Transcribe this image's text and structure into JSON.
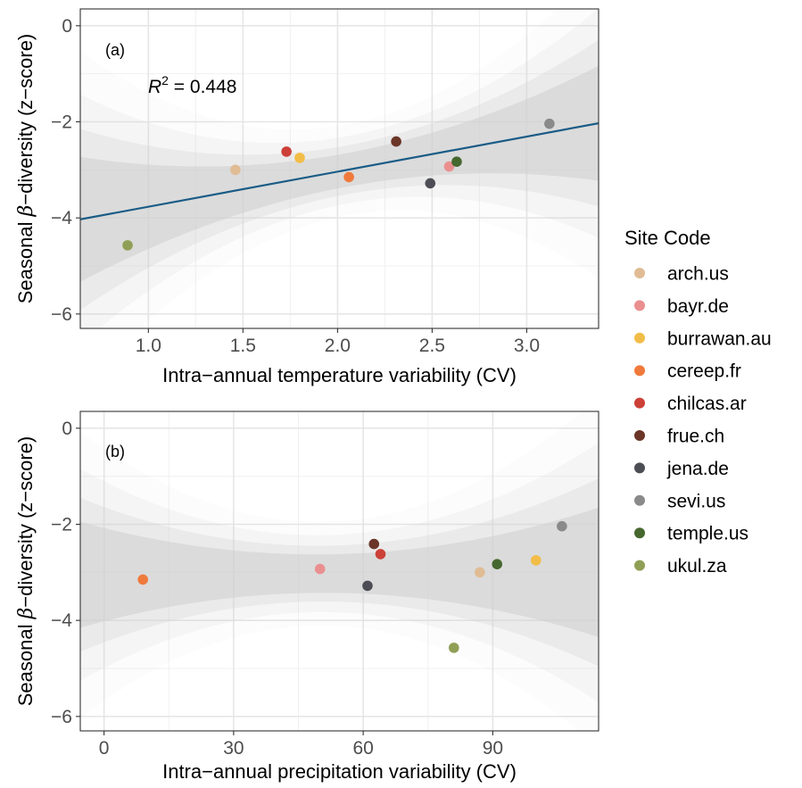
{
  "legend": {
    "title": "Site Code",
    "items": [
      {
        "label": "arch.us",
        "color": "#e0bc94"
      },
      {
        "label": "bayr.de",
        "color": "#ea8f8f"
      },
      {
        "label": "burrawan.au",
        "color": "#f2bd47"
      },
      {
        "label": "cereep.fr",
        "color": "#f07a3b"
      },
      {
        "label": "chilcas.ar",
        "color": "#cc4038"
      },
      {
        "label": "frue.ch",
        "color": "#6b3528"
      },
      {
        "label": "jena.de",
        "color": "#4d4d55"
      },
      {
        "label": "sevi.us",
        "color": "#8a8a8a"
      },
      {
        "label": "temple.us",
        "color": "#46682f"
      },
      {
        "label": "ukul.za",
        "color": "#8f9f55"
      }
    ]
  },
  "chart_data": [
    {
      "type": "scatter",
      "panel_tag": "(a)",
      "xlabel": "Intra−annual temperature variability (CV)",
      "ylabel_pre": "Seasonal ",
      "ylabel_beta": "β",
      "ylabel_post": "−diversity (z−score)",
      "xlim": [
        0.64,
        3.38
      ],
      "ylim": [
        -6.3,
        0.35
      ],
      "xticks": [
        1.0,
        1.5,
        2.0,
        2.5,
        3.0
      ],
      "xtick_labels": [
        "1.0",
        "1.5",
        "2.0",
        "2.5",
        "3.0"
      ],
      "yticks": [
        0,
        -2,
        -4,
        -6
      ],
      "ytick_labels": [
        "0",
        "−2",
        "−4",
        "−6"
      ],
      "annotation": {
        "prefix": "R",
        "sup": "2",
        "text": " = 0.448"
      },
      "fit_line": {
        "color": "#1a5c86",
        "x": [
          0.64,
          3.38
        ],
        "y": [
          -4.03,
          -2.03
        ]
      },
      "band_color": "#cfcfcf",
      "points": [
        {
          "site": "arch.us",
          "x": 1.46,
          "y": -3.0
        },
        {
          "site": "bayr.de",
          "x": 2.59,
          "y": -2.93
        },
        {
          "site": "burrawan.au",
          "x": 1.8,
          "y": -2.75
        },
        {
          "site": "cereep.fr",
          "x": 2.06,
          "y": -3.15
        },
        {
          "site": "chilcas.ar",
          "x": 1.73,
          "y": -2.62
        },
        {
          "site": "frue.ch",
          "x": 2.31,
          "y": -2.41
        },
        {
          "site": "jena.de",
          "x": 2.49,
          "y": -3.28
        },
        {
          "site": "sevi.us",
          "x": 3.12,
          "y": -2.04
        },
        {
          "site": "temple.us",
          "x": 2.63,
          "y": -2.83
        },
        {
          "site": "ukul.za",
          "x": 0.89,
          "y": -4.57
        }
      ]
    },
    {
      "type": "scatter",
      "panel_tag": "(b)",
      "xlabel": "Intra−annual precipitation variability (CV)",
      "ylabel_pre": "Seasonal ",
      "ylabel_beta": "β",
      "ylabel_post": "−diversity (z−score)",
      "xlim": [
        -5.5,
        114.5
      ],
      "ylim": [
        -6.3,
        0.35
      ],
      "xticks": [
        0,
        30,
        60,
        90
      ],
      "xtick_labels": [
        "0",
        "30",
        "60",
        "90"
      ],
      "yticks": [
        0,
        -2,
        -4,
        -6
      ],
      "ytick_labels": [
        "0",
        "−2",
        "−4",
        "−6"
      ],
      "band_color": "#cfcfcf",
      "points": [
        {
          "site": "arch.us",
          "x": 87,
          "y": -3.0
        },
        {
          "site": "bayr.de",
          "x": 50,
          "y": -2.93
        },
        {
          "site": "burrawan.au",
          "x": 100,
          "y": -2.75
        },
        {
          "site": "cereep.fr",
          "x": 9,
          "y": -3.15
        },
        {
          "site": "chilcas.ar",
          "x": 64,
          "y": -2.62
        },
        {
          "site": "frue.ch",
          "x": 62.5,
          "y": -2.41
        },
        {
          "site": "jena.de",
          "x": 61,
          "y": -3.28
        },
        {
          "site": "sevi.us",
          "x": 106,
          "y": -2.04
        },
        {
          "site": "temple.us",
          "x": 91,
          "y": -2.83
        },
        {
          "site": "ukul.za",
          "x": 81,
          "y": -4.57
        }
      ]
    }
  ]
}
